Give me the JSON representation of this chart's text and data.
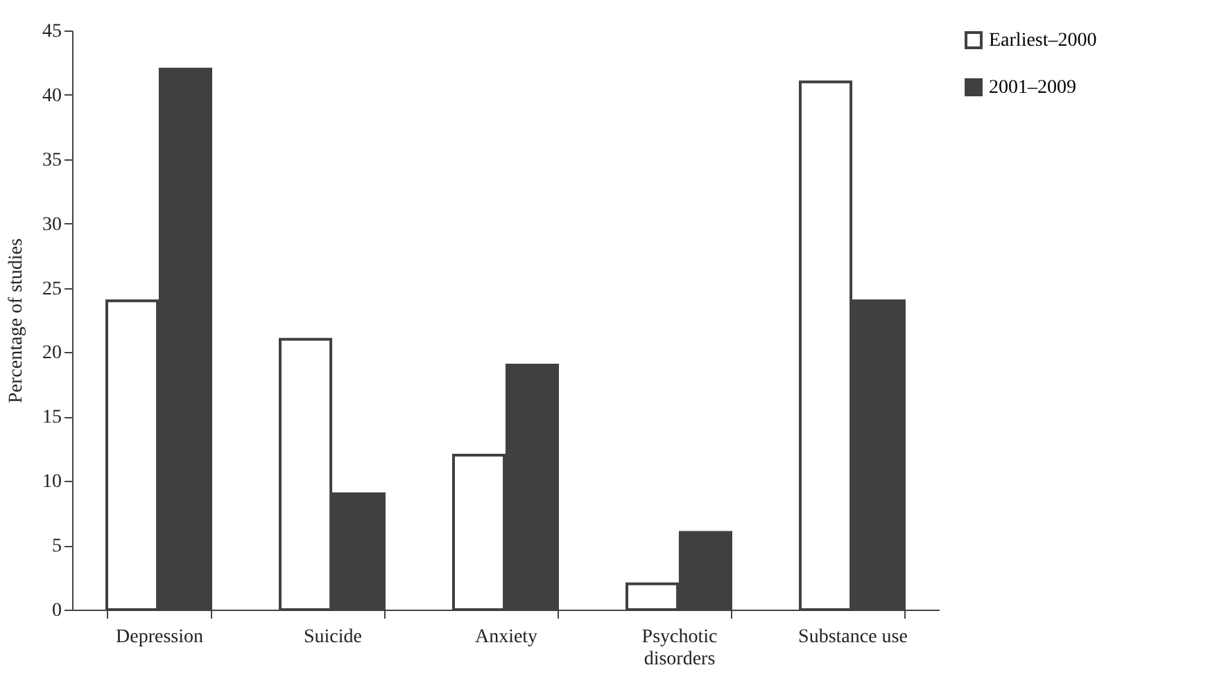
{
  "chart_data": {
    "type": "bar",
    "ylabel": "Percentage of studies",
    "categories": [
      "Depression",
      "Suicide",
      "Anxiety",
      "Psychotic disorders",
      "Substance use"
    ],
    "series": [
      {
        "name": "Earliest–2000",
        "color": "#ffffff",
        "values": [
          24,
          21,
          12,
          2,
          41
        ]
      },
      {
        "name": "2001–2009",
        "color": "#404040",
        "values": [
          42,
          9,
          19,
          6,
          24
        ]
      }
    ],
    "ylim": [
      0,
      45
    ],
    "yticks": [
      0,
      5,
      10,
      15,
      20,
      25,
      30,
      35,
      40,
      45
    ],
    "grid": false,
    "legend": "right"
  }
}
